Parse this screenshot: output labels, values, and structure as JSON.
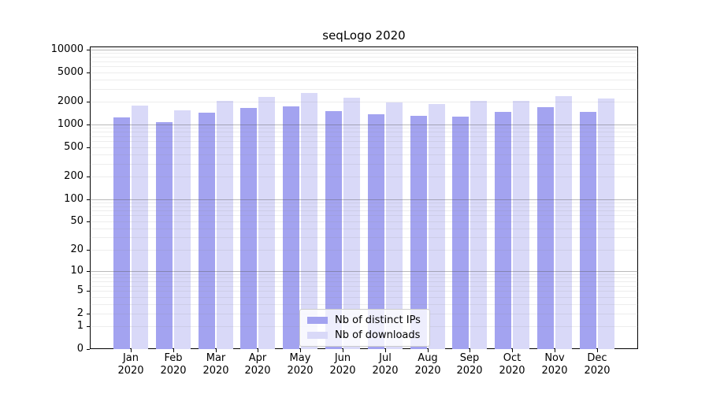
{
  "figure": {
    "title": "seqLogo 2020"
  },
  "chart_data": {
    "type": "bar",
    "title": "seqLogo 2020",
    "categories": [
      "Jan",
      "Feb",
      "Mar",
      "Apr",
      "May",
      "Jun",
      "Jul",
      "Aug",
      "Sep",
      "Oct",
      "Nov",
      "Dec"
    ],
    "year_label": "2020",
    "series": [
      {
        "name": "Nb of distinct IPs",
        "color": "#a3a3f0",
        "values": [
          1240,
          1080,
          1440,
          1670,
          1760,
          1510,
          1380,
          1300,
          1270,
          1480,
          1720,
          1480
        ]
      },
      {
        "name": "Nb of downloads",
        "color": "#d9d9f8",
        "values": [
          1780,
          1550,
          2080,
          2360,
          2670,
          2300,
          1990,
          1890,
          2080,
          2080,
          2400,
          2250
        ]
      }
    ],
    "yscale": "log1p",
    "y_ticks": [
      0,
      1,
      2,
      5,
      10,
      20,
      50,
      100,
      200,
      500,
      1000,
      2000,
      5000,
      10000
    ],
    "ylim": [
      0,
      11000
    ],
    "grid": "horizontal, log minor gridlines",
    "legend_position": "lower center",
    "xlabel": "",
    "ylabel": ""
  }
}
